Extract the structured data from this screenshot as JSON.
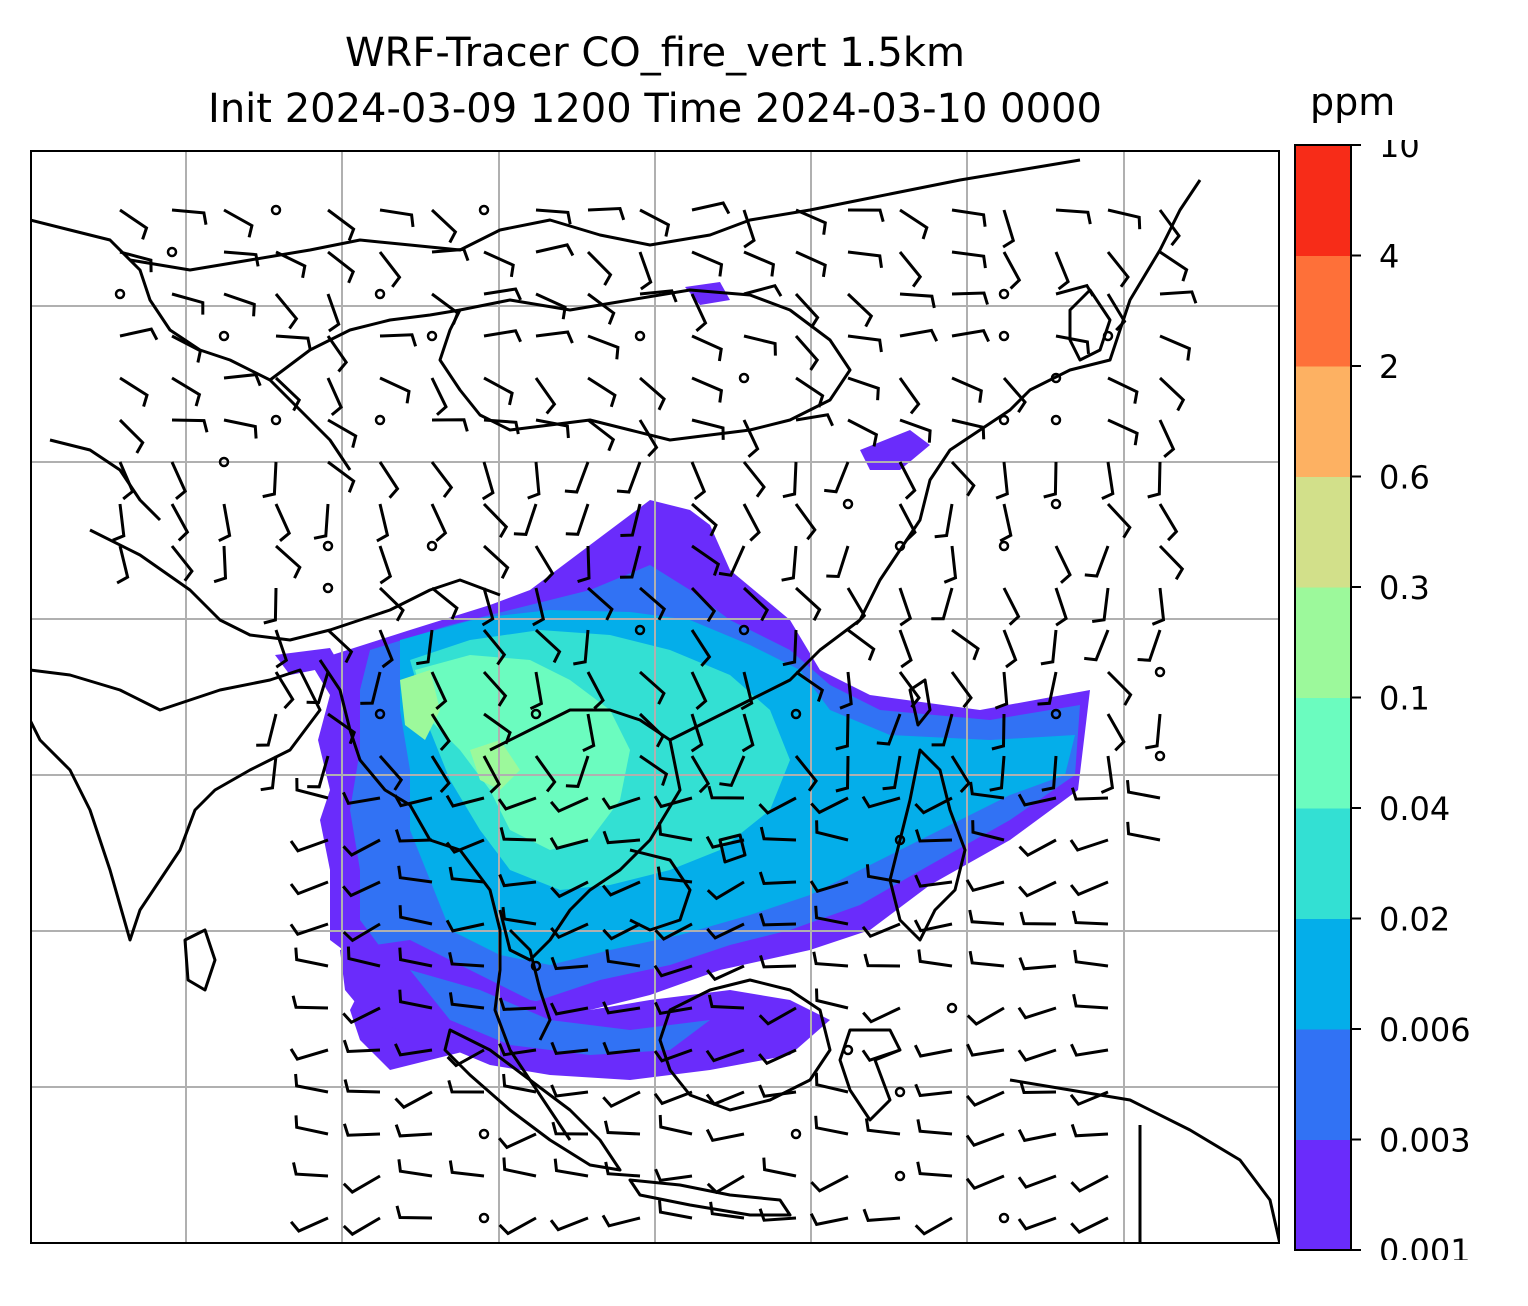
{
  "title_line1": "WRF-Tracer CO_fire_vert 1.5km",
  "title_line2": "Init 2024-03-09 1200 Time 2024-03-10 0000",
  "colorbar": {
    "unit": "ppm",
    "levels": [
      "0.001",
      "0.003",
      "0.006",
      "0.02",
      "0.04",
      "0.1",
      "0.3",
      "0.6",
      "2",
      "4",
      "10"
    ],
    "colors": [
      "#6a2cfb",
      "#3172f4",
      "#04aeea",
      "#33e0d3",
      "#6bfcbf",
      "#9cf99b",
      "#d2e08a",
      "#fdb162",
      "#fe7039",
      "#f72c18"
    ]
  },
  "colors": {
    "gridline": "#b0b0b0",
    "coastline": "#000000",
    "barb": "#000000"
  }
}
